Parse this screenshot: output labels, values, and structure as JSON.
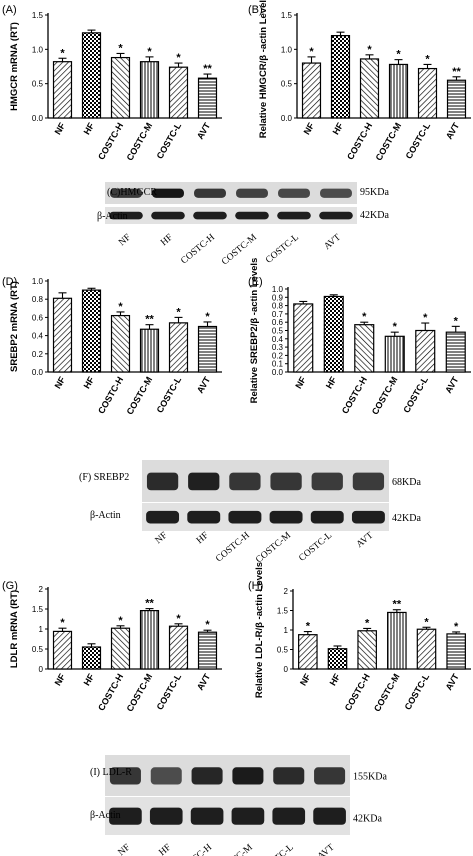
{
  "chart_data": [
    {
      "id": "A",
      "type": "bar",
      "title": "(A)",
      "ylabel": "HMGCR mRNA (RT)",
      "ylim": [
        0,
        1.5
      ],
      "yticks": [
        "0.0",
        "0.5",
        "1.0",
        "1.5"
      ],
      "tick_values": [
        0,
        0.5,
        1,
        1.5
      ],
      "categories": [
        "NF",
        "HF",
        "COSTC-H",
        "COSTC-M",
        "COSTC-L",
        "AVT"
      ],
      "values": [
        0.82,
        1.24,
        0.88,
        0.82,
        0.74,
        0.58
      ],
      "errors": [
        0.05,
        0.04,
        0.06,
        0.07,
        0.06,
        0.06
      ],
      "sig": [
        "*",
        "",
        "*",
        "*",
        "*",
        "**"
      ]
    },
    {
      "id": "B",
      "type": "bar",
      "title": "(B)",
      "ylabel": "Relative HMGCR/β -actin Levels",
      "ylim": [
        0,
        1.5
      ],
      "yticks": [
        "0.0",
        "0.5",
        "1.0",
        "1.5"
      ],
      "tick_values": [
        0,
        0.5,
        1,
        1.5
      ],
      "categories": [
        "NF",
        "HF",
        "COSTC-H",
        "COSTC-M",
        "COSTC-L",
        "AVT"
      ],
      "values": [
        0.8,
        1.2,
        0.86,
        0.78,
        0.72,
        0.55
      ],
      "errors": [
        0.09,
        0.05,
        0.06,
        0.07,
        0.06,
        0.05
      ],
      "sig": [
        "*",
        "",
        "*",
        "*",
        "*",
        "**"
      ]
    },
    {
      "id": "D",
      "type": "bar",
      "title": "(D)",
      "ylabel": "SREBP2 mRNA (RT)",
      "ylim": [
        0,
        1.0
      ],
      "yticks": [
        "0.0",
        "0.2",
        "0.4",
        "0.6",
        "0.8",
        "1.0"
      ],
      "tick_values": [
        0,
        0.2,
        0.4,
        0.6,
        0.8,
        1
      ],
      "categories": [
        "NF",
        "HF",
        "COSTC-H",
        "COSTC-M",
        "COSTC-L",
        "AVT"
      ],
      "values": [
        0.81,
        0.9,
        0.62,
        0.47,
        0.54,
        0.5
      ],
      "errors": [
        0.06,
        0.02,
        0.04,
        0.05,
        0.06,
        0.05
      ],
      "sig": [
        "",
        "",
        "*",
        "**",
        "*",
        "*"
      ]
    },
    {
      "id": "E",
      "type": "bar",
      "title": "(E)",
      "ylabel": "Relative SREBP2/β -actin Levels",
      "ylim": [
        0,
        1.0
      ],
      "yticks": [
        "0.0",
        "0.1",
        "0.2",
        "0.3",
        "0.4",
        "0.5",
        "0.6",
        "0.7",
        "0.8",
        "0.9",
        "1.0"
      ],
      "tick_values": [
        0,
        0.1,
        0.2,
        0.3,
        0.4,
        0.5,
        0.6,
        0.7,
        0.8,
        0.9,
        1
      ],
      "categories": [
        "NF",
        "HF",
        "COSTC-H",
        "COSTC-M",
        "COSTC-L",
        "AVT"
      ],
      "values": [
        0.82,
        0.91,
        0.57,
        0.43,
        0.5,
        0.48
      ],
      "errors": [
        0.03,
        0.02,
        0.03,
        0.05,
        0.09,
        0.07
      ],
      "sig": [
        "",
        "",
        "*",
        "*",
        "*",
        "*"
      ]
    },
    {
      "id": "G",
      "type": "bar",
      "title": "(G)",
      "ylabel": "LDLR mRNA (RT)",
      "ylim": [
        0,
        2.0
      ],
      "yticks": [
        "0",
        "0.5",
        "1",
        "1.5",
        "2"
      ],
      "tick_values": [
        0,
        0.5,
        1,
        1.5,
        2
      ],
      "categories": [
        "NF",
        "HF",
        "COSTC-H",
        "COSTC-M",
        "COSTC-L",
        "AVT"
      ],
      "values": [
        0.94,
        0.55,
        1.02,
        1.46,
        1.07,
        0.92
      ],
      "errors": [
        0.08,
        0.08,
        0.06,
        0.05,
        0.06,
        0.05
      ],
      "sig": [
        "*",
        "",
        "*",
        "**",
        "*",
        "*"
      ]
    },
    {
      "id": "H",
      "type": "bar",
      "title": "(H)",
      "ylabel": "Relative LDL-R/β -actin Levels",
      "ylim": [
        0,
        2.0
      ],
      "yticks": [
        "0",
        "0.5",
        "1",
        "1.5",
        "2"
      ],
      "tick_values": [
        0,
        0.5,
        1,
        1.5,
        2
      ],
      "categories": [
        "NF",
        "HF",
        "COSTC-H",
        "COSTC-M",
        "COSTC-L",
        "AVT"
      ],
      "values": [
        0.88,
        0.52,
        0.98,
        1.45,
        1.02,
        0.9
      ],
      "errors": [
        0.08,
        0.07,
        0.06,
        0.07,
        0.05,
        0.05
      ],
      "sig": [
        "*",
        "",
        "*",
        "**",
        "*",
        "*"
      ]
    }
  ],
  "blots": [
    {
      "id": "C",
      "label": "(C)HMGCR",
      "kda": "95KDa",
      "actin_label": "β-Actin",
      "actin_kda": "42KDa",
      "lanes": [
        "NF",
        "HF",
        "COSTC-H",
        "COSTC-M",
        "COSTC-L",
        "AVT"
      ],
      "intensity": [
        0.55,
        0.9,
        0.6,
        0.5,
        0.45,
        0.4
      ]
    },
    {
      "id": "F",
      "label": "(F) SREBP2",
      "kda": "68KDa",
      "actin_label": "β-Actin",
      "actin_kda": "42KDa",
      "lanes": [
        "NF",
        "HF",
        "COSTC-H",
        "COSTC-M",
        "COSTC-L",
        "AVT"
      ],
      "intensity": [
        0.7,
        0.8,
        0.6,
        0.6,
        0.55,
        0.55
      ]
    },
    {
      "id": "I",
      "label": "(I) LDL-R",
      "kda": "155KDa",
      "actin_label": "β-Actin",
      "actin_kda": "42KDa",
      "lanes": [
        "NF",
        "HF",
        "COSTC-H",
        "COSTC-M",
        "COSTC-L",
        "AVT"
      ],
      "intensity": [
        0.6,
        0.4,
        0.75,
        0.85,
        0.7,
        0.6
      ]
    }
  ]
}
